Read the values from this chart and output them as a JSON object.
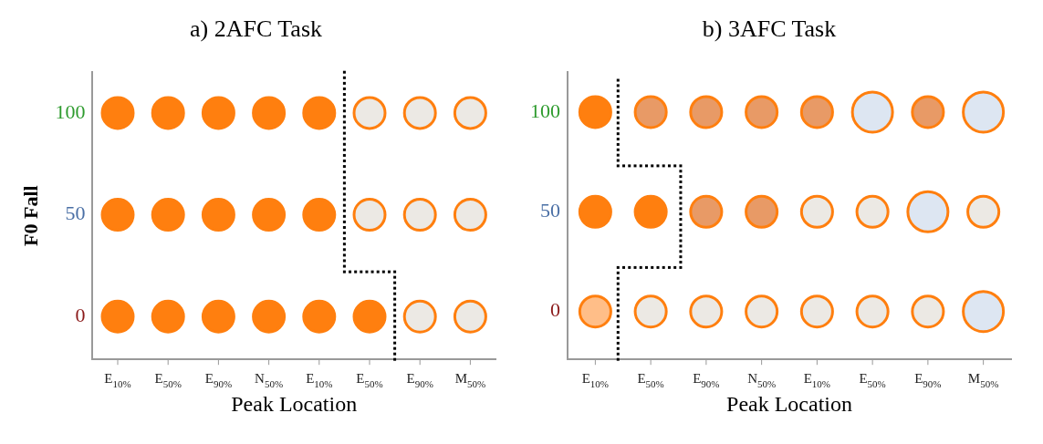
{
  "chart_data": [
    {
      "type": "scatter",
      "title": "a) 2AFC Task",
      "xlabel": "Peak Location",
      "ylabel": "F0 Fall",
      "marker": "circle",
      "legend": false,
      "grid": false,
      "ylim": [
        -21,
        120
      ],
      "yticks": [
        0,
        50,
        100
      ],
      "categories": [
        "E$_{10%}$",
        "E$_{50%}$",
        "E$_{90%}$",
        "N$_{50%}$",
        "E$_{10%}$",
        "E$_{50%}$",
        "E$_{90%}$",
        "M$_{50%}$"
      ],
      "series": [
        {
          "values": [
            100,
            100,
            100,
            100,
            100,
            100,
            100,
            100
          ],
          "color": "#ff7f0f",
          "colors": [
            "#ff7f0f",
            "#ff7f0f",
            "#ff7f0f",
            "#ff7f0f",
            "#ff7f0f",
            "#ece9e4",
            "#ece9e4",
            "#ece9e4"
          ]
        },
        {
          "values": [
            50,
            50,
            50,
            50,
            50,
            50,
            50,
            50
          ],
          "color": "#ff7f0f",
          "colors": [
            "#ff7f0f",
            "#ff7f0f",
            "#ff7f0f",
            "#ff7f0f",
            "#ff7f0f",
            "#ece9e4",
            "#ece9e4",
            "#ece9e4"
          ]
        },
        {
          "values": [
            0,
            0,
            0,
            0,
            0,
            0,
            0,
            0
          ],
          "color": "#ff7f0f",
          "colors": [
            "#ff7f0f",
            "#ff7f0f",
            "#ff7f0f",
            "#ff7f0f",
            "#ff7f0f",
            "#ff7f0f",
            "#ece9e4",
            "#ece9e4"
          ]
        }
      ]
    },
    {
      "type": "bubble",
      "title": "b) 3AFC Task",
      "xlabel": "Peak Location",
      "marker": "circle",
      "legend": false,
      "grid": false,
      "ylim": [
        -24,
        120
      ],
      "yticks": [
        0,
        50,
        100
      ],
      "categories": [
        "E$_{10%}$",
        "E$_{50%}$",
        "E$_{90%}$",
        "N$_{50%}$",
        "E$_{10%}$",
        "E$_{50%}$",
        "E$_{90%}$",
        "M$_{50%}$"
      ],
      "series": [
        {
          "values": [
            100,
            100,
            100,
            100,
            100,
            100,
            100,
            100
          ],
          "sizes": [
            0.6,
            0.6,
            0.6,
            0.6,
            0.6,
            1,
            0.6,
            1
          ],
          "color": "#ff7f0f",
          "colors": [
            "#ff7f0f",
            "#e89a66",
            "#e89a66",
            "#e89a66",
            "#e89a66",
            "#dde6f2",
            "#e89a66",
            "#dde6f2"
          ]
        },
        {
          "values": [
            50,
            50,
            50,
            50,
            50,
            50,
            50,
            50
          ],
          "sizes": [
            0.6,
            0.6,
            0.6,
            0.6,
            0.6,
            0.6,
            1,
            0.6
          ],
          "color": "#ff7f0f",
          "colors": [
            "#ff7f0f",
            "#ff7f0f",
            "#e89a66",
            "#e89a66",
            "#ece9e4",
            "#ece9e4",
            "#dde6f2",
            "#ece9e4"
          ]
        },
        {
          "values": [
            0,
            0,
            0,
            0,
            0,
            0,
            0,
            0
          ],
          "sizes": [
            0.6,
            0.6,
            0.6,
            0.6,
            0.6,
            0.6,
            0.6,
            1
          ],
          "color": "#ff7f0f",
          "colors": [
            "#ffbe88",
            "#ece9e4",
            "#ece9e4",
            "#ece9e4",
            "#ece9e4",
            "#ece9e4",
            "#ece9e4",
            "#dde6f2"
          ]
        }
      ]
    }
  ]
}
